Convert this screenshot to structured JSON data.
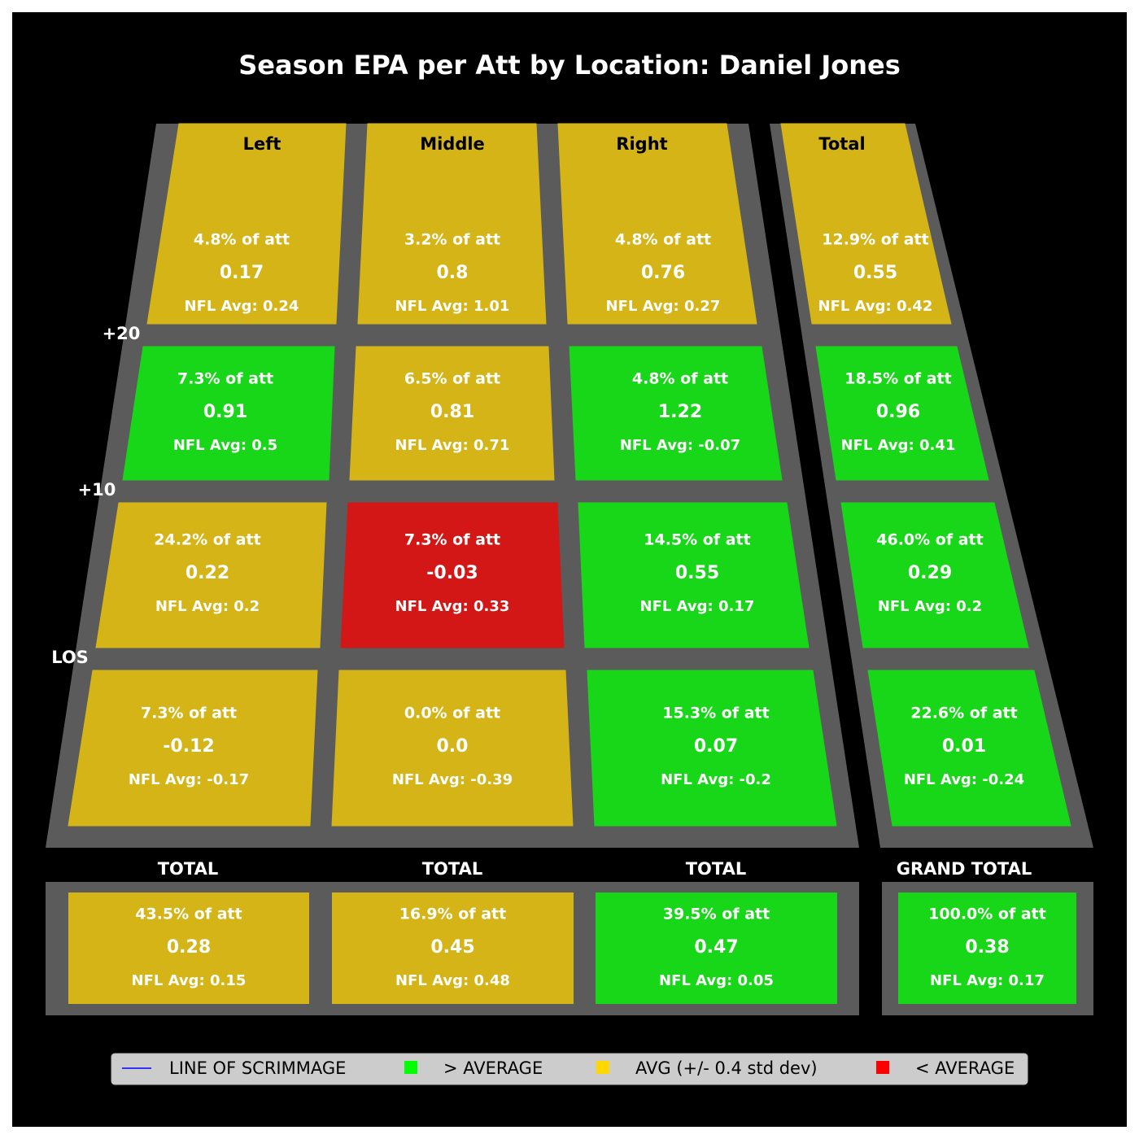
{
  "chart_data": {
    "type": "heatmap",
    "title": "Season EPA per Att by Location: Daniel Jones",
    "columns": [
      "Left",
      "Middle",
      "Right",
      "Total"
    ],
    "depth_labels": [
      "+20",
      "+10",
      "LOS"
    ],
    "rows": [
      [
        {
          "pct": "4.8% of att",
          "value": 0.17,
          "value_label": "0.17",
          "nfl_avg": "NFL Avg: 0.24",
          "rating": "avg"
        },
        {
          "pct": "3.2% of att",
          "value": 0.8,
          "value_label": "0.8",
          "nfl_avg": "NFL Avg: 1.01",
          "rating": "avg"
        },
        {
          "pct": "4.8% of att",
          "value": 0.76,
          "value_label": "0.76",
          "nfl_avg": "NFL Avg: 0.27",
          "rating": "avg"
        },
        {
          "pct": "12.9% of att",
          "value": 0.55,
          "value_label": "0.55",
          "nfl_avg": "NFL Avg: 0.42",
          "rating": "avg"
        }
      ],
      [
        {
          "pct": "7.3% of att",
          "value": 0.91,
          "value_label": "0.91",
          "nfl_avg": "NFL Avg: 0.5",
          "rating": "above"
        },
        {
          "pct": "6.5% of att",
          "value": 0.81,
          "value_label": "0.81",
          "nfl_avg": "NFL Avg: 0.71",
          "rating": "avg"
        },
        {
          "pct": "4.8% of att",
          "value": 1.22,
          "value_label": "1.22",
          "nfl_avg": "NFL Avg: -0.07",
          "rating": "above"
        },
        {
          "pct": "18.5% of att",
          "value": 0.96,
          "value_label": "0.96",
          "nfl_avg": "NFL Avg: 0.41",
          "rating": "above"
        }
      ],
      [
        {
          "pct": "24.2% of att",
          "value": 0.22,
          "value_label": "0.22",
          "nfl_avg": "NFL Avg: 0.2",
          "rating": "avg"
        },
        {
          "pct": "7.3% of att",
          "value": -0.03,
          "value_label": "-0.03",
          "nfl_avg": "NFL Avg: 0.33",
          "rating": "below"
        },
        {
          "pct": "14.5% of att",
          "value": 0.55,
          "value_label": "0.55",
          "nfl_avg": "NFL Avg: 0.17",
          "rating": "above"
        },
        {
          "pct": "46.0% of att",
          "value": 0.29,
          "value_label": "0.29",
          "nfl_avg": "NFL Avg: 0.2",
          "rating": "above"
        }
      ],
      [
        {
          "pct": "7.3% of att",
          "value": -0.12,
          "value_label": "-0.12",
          "nfl_avg": "NFL Avg: -0.17",
          "rating": "avg"
        },
        {
          "pct": "0.0% of att",
          "value": 0.0,
          "value_label": "0.0",
          "nfl_avg": "NFL Avg: -0.39",
          "rating": "avg"
        },
        {
          "pct": "15.3% of att",
          "value": 0.07,
          "value_label": "0.07",
          "nfl_avg": "NFL Avg: -0.2",
          "rating": "above"
        },
        {
          "pct": "22.6% of att",
          "value": 0.01,
          "value_label": "0.01",
          "nfl_avg": "NFL Avg: -0.24",
          "rating": "above"
        }
      ]
    ],
    "totals_labels": [
      "TOTAL",
      "TOTAL",
      "TOTAL",
      "GRAND TOTAL"
    ],
    "totals": [
      {
        "pct": "43.5% of att",
        "value": 0.28,
        "value_label": "0.28",
        "nfl_avg": "NFL Avg: 0.15",
        "rating": "avg"
      },
      {
        "pct": "16.9% of att",
        "value": 0.45,
        "value_label": "0.45",
        "nfl_avg": "NFL Avg: 0.48",
        "rating": "avg"
      },
      {
        "pct": "39.5% of att",
        "value": 0.47,
        "value_label": "0.47",
        "nfl_avg": "NFL Avg: 0.05",
        "rating": "above"
      },
      {
        "pct": "100.0% of att",
        "value": 0.38,
        "value_label": "0.38",
        "nfl_avg": "NFL Avg: 0.17",
        "rating": "above"
      }
    ],
    "legend": {
      "placement": "bottom",
      "entries": [
        {
          "label": "LINE OF SCRIMMAGE",
          "marker": "line",
          "color": "#0000ff"
        },
        {
          "label": "> AVERAGE",
          "marker": "square",
          "color": "#00ff00"
        },
        {
          "label": "AVG (+/- 0.4 std dev)",
          "marker": "square",
          "color": "#ffd700"
        },
        {
          "label": "< AVERAGE",
          "marker": "square",
          "color": "#ff0000"
        }
      ]
    },
    "colors": {
      "above": "#18d718",
      "avg": "#d4b417",
      "below": "#d31717",
      "field": "#5b5b5b",
      "background": "#000000"
    }
  }
}
